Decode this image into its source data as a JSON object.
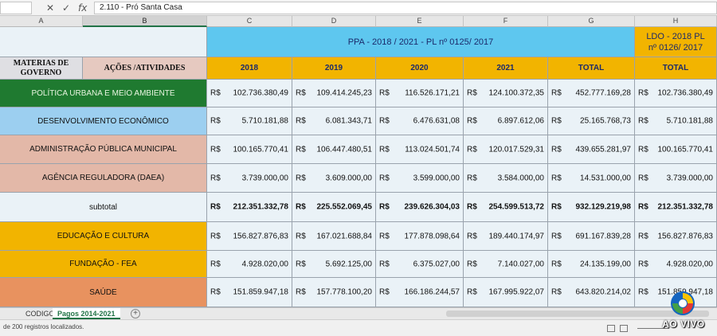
{
  "formula_bar": {
    "cell_content": "2.110 - Pró Santa Casa",
    "fx_symbol": "fx"
  },
  "columns": [
    "A",
    "B",
    "C",
    "D",
    "E",
    "F",
    "G",
    "H"
  ],
  "header": {
    "materias_label": "MATERIAS DE GOVERNO",
    "acoes_label": "AÇÕES /ATIVIDADES",
    "ppa_title": "PPA - 2018 / 2021 - PL nº 0125/ 2017",
    "ldo_title": "LDO - 2018 PL nº 0126/ 2017",
    "years": [
      "2018",
      "2019",
      "2020",
      "2021",
      "TOTAL",
      "TOTAL"
    ]
  },
  "currency": "R$",
  "rows": [
    {
      "label": "POLÍTICA URBANA E MEIO AMBIENTE",
      "values": [
        "102.736.380,49",
        "109.414.245,23",
        "116.526.171,21",
        "124.100.372,35",
        "452.777.169,28",
        "102.736.380,49"
      ]
    },
    {
      "label": "DESENVOLVIMENTO ECONÔMICO",
      "values": [
        "5.710.181,88",
        "6.081.343,71",
        "6.476.631,08",
        "6.897.612,06",
        "25.165.768,73",
        "5.710.181,88"
      ]
    },
    {
      "label": "ADMINISTRAÇÃO PÚBLICA MUNICIPAL",
      "values": [
        "100.165.770,41",
        "106.447.480,51",
        "113.024.501,74",
        "120.017.529,31",
        "439.655.281,97",
        "100.165.770,41"
      ]
    },
    {
      "label": "AGÊNCIA REGULADORA (DAEA)",
      "values": [
        "3.739.000,00",
        "3.609.000,00",
        "3.599.000,00",
        "3.584.000,00",
        "14.531.000,00",
        "3.739.000,00"
      ]
    },
    {
      "label": "subtotal",
      "values": [
        "212.351.332,78",
        "225.552.069,45",
        "239.626.304,03",
        "254.599.513,72",
        "932.129.219,98",
        "212.351.332,78"
      ]
    },
    {
      "label": "EDUCAÇÃO E CULTURA",
      "values": [
        "156.827.876,83",
        "167.021.688,84",
        "177.878.098,64",
        "189.440.174,97",
        "691.167.839,28",
        "156.827.876,83"
      ]
    },
    {
      "label": "FUNDAÇÃO - FEA",
      "values": [
        "4.928.020,00",
        "5.692.125,00",
        "6.375.027,00",
        "7.140.027,00",
        "24.135.199,00",
        "4.928.020,00"
      ]
    },
    {
      "label": "SAÚDE",
      "values": [
        "151.859.947,18",
        "157.778.100,20",
        "166.186.244,57",
        "167.995.922,07",
        "643.820.214,02",
        "151.859.947,18"
      ]
    }
  ],
  "row_colors": [
    "#1f7a30",
    "#9ccff0",
    "#e3b8a8",
    "#e3b8a8",
    "#eaf2f7",
    "#f2b400",
    "#f2b400",
    "#e8925f"
  ],
  "sheet_tabs": [
    "CODIGOS",
    "Pagos 2014-2021"
  ],
  "status": {
    "text": "de 200 registros localizados."
  },
  "watermark": {
    "text": "AO VIVO"
  }
}
